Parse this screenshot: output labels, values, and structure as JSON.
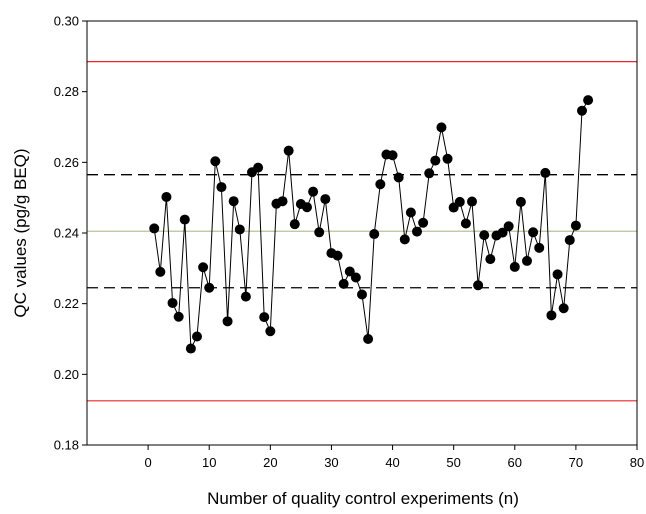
{
  "chart_data": {
    "type": "scatter",
    "xlabel": "Number of quality control experiments (n)",
    "ylabel": "QC values (pg/g BEQ)",
    "xlim": [
      -10,
      80
    ],
    "ylim": [
      0.18,
      0.3
    ],
    "xticks": [
      0,
      10,
      20,
      30,
      40,
      50,
      60,
      70,
      80
    ],
    "xtick_labels": [
      "0",
      "10",
      "20",
      "30",
      "40",
      "50",
      "60",
      "70",
      "80"
    ],
    "yticks": [
      0.18,
      0.2,
      0.22,
      0.24,
      0.26,
      0.28,
      0.3
    ],
    "ytick_labels": [
      "0.18",
      "0.20",
      "0.22",
      "0.24",
      "0.26",
      "0.28",
      "0.30"
    ],
    "grid": false,
    "series": [
      {
        "style": "line-with-markers",
        "color": "#000000",
        "x": [
          1,
          2,
          3,
          4,
          5,
          6,
          7,
          8,
          9,
          10,
          11,
          12,
          13,
          14,
          15,
          16,
          17,
          18,
          19,
          20,
          21,
          22,
          23,
          24,
          25,
          26,
          27,
          28,
          29,
          30,
          31,
          32,
          33,
          34,
          35,
          36,
          37,
          38,
          39,
          40,
          41,
          42,
          43,
          44,
          45,
          46,
          47,
          48,
          49,
          50,
          51,
          52,
          53,
          54,
          55,
          56,
          57,
          58,
          59,
          60,
          61,
          62,
          63,
          64,
          65,
          66,
          67,
          68,
          69,
          70,
          71,
          72
        ],
        "y": [
          0.2413,
          0.229,
          0.2502,
          0.2202,
          0.2163,
          0.2438,
          0.2073,
          0.2107,
          0.2303,
          0.2245,
          0.2603,
          0.253,
          0.215,
          0.249,
          0.241,
          0.222,
          0.2572,
          0.2585,
          0.2162,
          0.2122,
          0.2483,
          0.249,
          0.2633,
          0.2425,
          0.2482,
          0.2473,
          0.2517,
          0.2402,
          0.2496,
          0.2343,
          0.2336,
          0.2256,
          0.2291,
          0.2274,
          0.2226,
          0.21,
          0.2397,
          0.2538,
          0.2622,
          0.262,
          0.2557,
          0.2382,
          0.2458,
          0.2404,
          0.2429,
          0.2569,
          0.2605,
          0.2699,
          0.261,
          0.2472,
          0.2488,
          0.2427,
          0.2489,
          0.2252,
          0.2394,
          0.2326,
          0.2393,
          0.2401,
          0.2419,
          0.2304,
          0.2488,
          0.2321,
          0.2402,
          0.2358,
          0.257,
          0.2167,
          0.2283,
          0.2187,
          0.238,
          0.2421,
          0.2746,
          0.2776
        ]
      }
    ],
    "reference_lines": [
      {
        "role": "upper-control-limit",
        "y": 0.2885,
        "color": "#e8292b",
        "style": "solid"
      },
      {
        "role": "upper-warning-limit",
        "y": 0.2565,
        "color": "#000000",
        "style": "dashed"
      },
      {
        "role": "mean",
        "y": 0.2405,
        "color": "#b5c49a",
        "style": "solid"
      },
      {
        "role": "lower-warning-limit",
        "y": 0.2245,
        "color": "#000000",
        "style": "dashed"
      },
      {
        "role": "lower-control-limit",
        "y": 0.1925,
        "color": "#e8292b",
        "style": "solid"
      }
    ]
  }
}
